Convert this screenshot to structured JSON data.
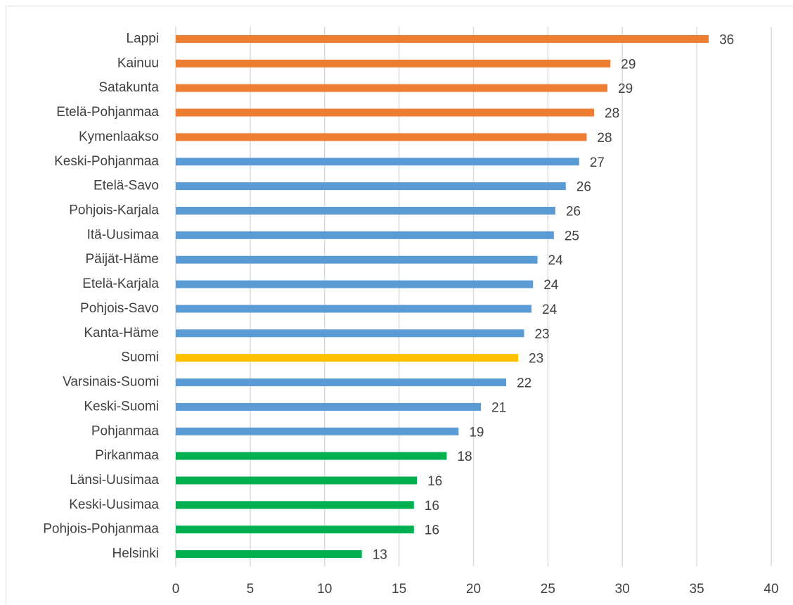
{
  "chart_data": {
    "type": "hbar",
    "categories": [
      "Lappi",
      "Kainuu",
      "Satakunta",
      "Etelä-Pohjanmaa",
      "Kymenlaakso",
      "Keski-Pohjanmaa",
      "Etelä-Savo",
      "Pohjois-Karjala",
      "Itä-Uusimaa",
      "Päijät-Häme",
      "Etelä-Karjala",
      "Pohjois-Savo",
      "Kanta-Häme",
      "Suomi",
      "Varsinais-Suomi",
      "Keski-Suomi",
      "Pohjanmaa",
      "Pirkanmaa",
      "Länsi-Uusimaa",
      "Keski-Uusimaa",
      "Pohjois-Pohjanmaa",
      "Helsinki"
    ],
    "values": [
      35.8,
      29.2,
      29.0,
      28.1,
      27.6,
      27.1,
      26.2,
      25.5,
      25.4,
      24.3,
      24.0,
      23.9,
      23.4,
      23.0,
      22.2,
      20.5,
      19.0,
      18.2,
      16.2,
      16.0,
      16.0,
      12.5
    ],
    "value_labels": [
      36,
      29,
      29,
      28,
      28,
      27,
      26,
      26,
      25,
      24,
      24,
      24,
      23,
      23,
      22,
      21,
      19,
      18,
      16,
      16,
      16,
      13
    ],
    "colors": [
      "#ed7d31",
      "#ed7d31",
      "#ed7d31",
      "#ed7d31",
      "#ed7d31",
      "#5b9bd5",
      "#5b9bd5",
      "#5b9bd5",
      "#5b9bd5",
      "#5b9bd5",
      "#5b9bd5",
      "#5b9bd5",
      "#5b9bd5",
      "#ffc000",
      "#5b9bd5",
      "#5b9bd5",
      "#5b9bd5",
      "#00b050",
      "#00b050",
      "#00b050",
      "#00b050",
      "#00b050"
    ],
    "xlim": [
      0,
      40
    ],
    "xticks": [
      0,
      5,
      10,
      15,
      20,
      25,
      30,
      35,
      40
    ],
    "grid": true
  }
}
